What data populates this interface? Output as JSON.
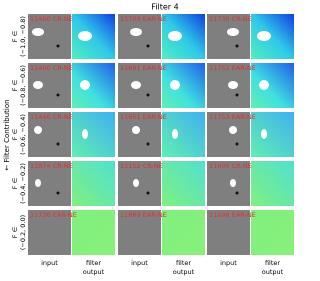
{
  "title": "Filter 4",
  "y_axis_label": "← Filter Contribution",
  "rows": [
    {
      "label": [
        "F ∈",
        "(−1.0, −0.8)"
      ],
      "cells": [
        "11400 CR-NE",
        "11709 EAR-NE",
        "11730 CR-NE"
      ]
    },
    {
      "label": [
        "F ∈",
        "(−0.8, −0.6)"
      ],
      "cells": [
        "11400 CR-NE",
        "11691 EAR-NE",
        "11752 EAR-NE"
      ]
    },
    {
      "label": [
        "F ∈",
        "(−0.6, −0.4)"
      ],
      "cells": [
        "11446 CR-NE",
        "11651 EAR-NE",
        "11753 EAR-NE"
      ]
    },
    {
      "label": [
        "F ∈",
        "(−0.4, −0.2)"
      ],
      "cells": [
        "11874 CR-NE",
        "11152 CR-NE",
        "11605 CR-NE"
      ]
    },
    {
      "label": [
        "F ∈",
        "(−0.2, 0.0)"
      ],
      "cells": [
        "11736 EAR-NE",
        "11869 EAR-NE",
        "11698 EAR-NE"
      ]
    }
  ],
  "column_labels": {
    "input": "input",
    "output": [
      "filter",
      "output"
    ]
  }
}
